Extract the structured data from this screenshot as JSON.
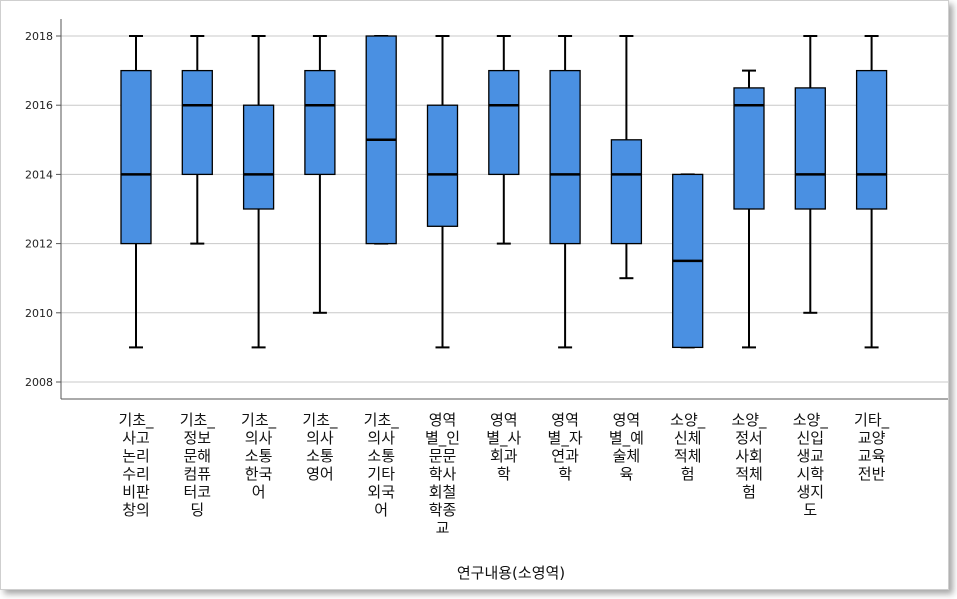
{
  "chart_data": {
    "type": "boxplot",
    "xlabel": "연구내용(소영역)",
    "ylabel": "",
    "ylim": [
      2007.5,
      2018.5
    ],
    "yticks": [
      2008,
      2010,
      2012,
      2014,
      2016,
      2018
    ],
    "grid": true,
    "box_color": "#4a90e2",
    "categories": [
      {
        "label": "기초_사고논리수리비판창의",
        "lines": [
          "기초_",
          "사고",
          "논리",
          "수리",
          "비판",
          "창의"
        ],
        "min": 2009,
        "q1": 2012,
        "median": 2014,
        "q3": 2017,
        "max": 2018
      },
      {
        "label": "기초_정보문해컴퓨터코딩",
        "lines": [
          "기초_",
          "정보",
          "문해",
          "컴퓨",
          "터코",
          "딩"
        ],
        "min": 2012,
        "q1": 2014,
        "median": 2016,
        "q3": 2017,
        "max": 2018
      },
      {
        "label": "기초_의사소통한국어",
        "lines": [
          "기초_",
          "의사",
          "소통",
          "한국",
          "어"
        ],
        "min": 2009,
        "q1": 2013,
        "median": 2014,
        "q3": 2016,
        "max": 2018
      },
      {
        "label": "기초_의사소통영어",
        "lines": [
          "기초_",
          "의사",
          "소통",
          "영어"
        ],
        "min": 2010,
        "q1": 2014,
        "median": 2016,
        "q3": 2017,
        "max": 2018
      },
      {
        "label": "기초_의사소통기타외국어",
        "lines": [
          "기초_",
          "의사",
          "소통",
          "기타",
          "외국",
          "어"
        ],
        "min": 2012,
        "q1": 2012,
        "median": 2015,
        "q3": 2018,
        "max": 2018
      },
      {
        "label": "영역별_인문문학사회철학종교",
        "lines": [
          "영역",
          "별_인",
          "문문",
          "학사",
          "회철",
          "학종",
          "교"
        ],
        "min": 2009,
        "q1": 2012.5,
        "median": 2014,
        "q3": 2016,
        "max": 2018
      },
      {
        "label": "영역별_사회과학",
        "lines": [
          "영역",
          "별_사",
          "회과",
          "학"
        ],
        "min": 2012,
        "q1": 2014,
        "median": 2016,
        "q3": 2017,
        "max": 2018
      },
      {
        "label": "영역별_자연과학",
        "lines": [
          "영역",
          "별_자",
          "연과",
          "학"
        ],
        "min": 2009,
        "q1": 2012,
        "median": 2014,
        "q3": 2017,
        "max": 2018
      },
      {
        "label": "영역별_예술체육",
        "lines": [
          "영역",
          "별_예",
          "술체",
          "육"
        ],
        "min": 2011,
        "q1": 2012,
        "median": 2014,
        "q3": 2015,
        "max": 2018
      },
      {
        "label": "소양_신체적체험",
        "lines": [
          "소양_",
          "신체",
          "적체",
          "험"
        ],
        "min": 2009,
        "q1": 2009,
        "median": 2011.5,
        "q3": 2014,
        "max": 2014
      },
      {
        "label": "소양_정서사회적체험",
        "lines": [
          "소양_",
          "정서",
          "사회",
          "적체",
          "험"
        ],
        "min": 2009,
        "q1": 2013,
        "median": 2016,
        "q3": 2016.5,
        "max": 2017
      },
      {
        "label": "소양_신입생교시학생지도",
        "lines": [
          "소양_",
          "신입",
          "생교",
          "시학",
          "생지",
          "도"
        ],
        "min": 2010,
        "q1": 2013,
        "median": 2014,
        "q3": 2016.5,
        "max": 2018
      },
      {
        "label": "기타_교양교육전반",
        "lines": [
          "기타_",
          "교양",
          "교육",
          "전반"
        ],
        "min": 2009,
        "q1": 2013,
        "median": 2014,
        "q3": 2017,
        "max": 2018
      }
    ]
  }
}
